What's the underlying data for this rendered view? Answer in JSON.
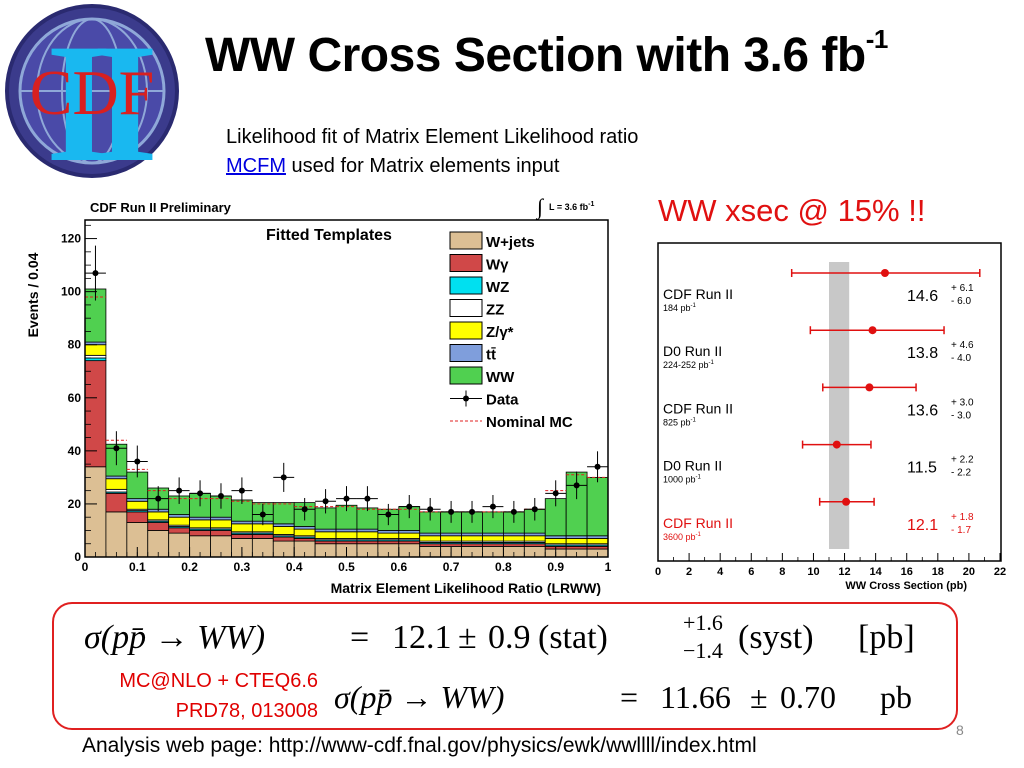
{
  "slide": {
    "title": "WW Cross Section with 3.6 fb",
    "title_sup": "-1",
    "subtitle_line1": "Likelihood fit of Matrix Element Likelihood ratio",
    "subtitle_link": "MCFM",
    "subtitle_line2_rest": " used for Matrix elements input",
    "highlight": "WW xsec @ 15% !!",
    "logo_text": "CDF",
    "logo_numeral": "II",
    "page_number": "8",
    "footer": "Analysis web page: http://www-cdf.fnal.gov/physics/ewk/wwllll/index.html",
    "theory_line1": "MC@NLO + CTEQ6.6",
    "theory_line2": "PRD78, 013008",
    "measurement": {
      "lhs": "σ(pp̄ → WW)",
      "eq": "=",
      "value": "12.1",
      "pm": "±",
      "stat": "0.9",
      "stat_label": "(stat)",
      "syst_up": "+1.6",
      "syst_down": "−1.4",
      "syst_label": "(syst)",
      "unit": "[pb]"
    },
    "theory_prediction": {
      "lhs": "σ(pp̄  →  WW)",
      "eq": "=",
      "value": "11.66",
      "pm": "±",
      "err": "0.70",
      "unit": "pb"
    }
  },
  "colors": {
    "w_jets": "#dcbf94",
    "w_gamma": "#d04848",
    "wz": "#00e0f0",
    "zz": "#ffffff",
    "z_gamma": "#ffff00",
    "ttbar": "#7f9edc",
    "ww": "#50d050",
    "highlight_red": "#e01010",
    "band_grey": "#c8c8c8"
  },
  "chart_data": [
    {
      "type": "bar",
      "stacked": true,
      "title": "CDF Run II Preliminary",
      "lumi_label": "L = 3.6 fb",
      "lumi_sup": "-1",
      "legend_title": "Fitted Templates",
      "legend_position": "top-right",
      "xlabel": "Matrix Element Likelihood Ratio (LRWW)",
      "ylabel": "Events / 0.04",
      "xlim": [
        0,
        1
      ],
      "ylim": [
        0,
        127
      ],
      "xticks": [
        "0",
        "0.1",
        "0.2",
        "0.3",
        "0.4",
        "0.5",
        "0.6",
        "0.7",
        "0.8",
        "0.9",
        "1"
      ],
      "yticks": [
        "0",
        "20",
        "40",
        "60",
        "80",
        "100",
        "120"
      ],
      "bin_edges": [
        0,
        0.04,
        0.08,
        0.12,
        0.16,
        0.2,
        0.24,
        0.28,
        0.32,
        0.36,
        0.4,
        0.44,
        0.48,
        0.52,
        0.56,
        0.6,
        0.64,
        0.68,
        0.72,
        0.76,
        0.8,
        0.84,
        0.88,
        0.92,
        0.96,
        1.0
      ],
      "series": [
        {
          "name": "W+jets",
          "color_key": "w_jets",
          "values": [
            34,
            17,
            13,
            10,
            9,
            8,
            8,
            7,
            7,
            6,
            6,
            5,
            5,
            5,
            5,
            5,
            4,
            4,
            4,
            4,
            4,
            4,
            3,
            3,
            3
          ]
        },
        {
          "name": "Wγ",
          "color_key": "w_gamma",
          "values": [
            40,
            7,
            4,
            3,
            2,
            2,
            2,
            1.5,
            1.5,
            1.5,
            1,
            1,
            1,
            1,
            1,
            1,
            1,
            1,
            1,
            1,
            1,
            1,
            1,
            1,
            1
          ]
        },
        {
          "name": "WZ",
          "color_key": "wz",
          "values": [
            1,
            0.5,
            0.5,
            0.5,
            0.5,
            0.5,
            0.5,
            0.5,
            0.5,
            0.5,
            0.5,
            0.5,
            0.5,
            0.5,
            0.5,
            0.5,
            0.5,
            0.5,
            0.5,
            0.5,
            0.5,
            0.5,
            0.5,
            0.5,
            0.5
          ]
        },
        {
          "name": "ZZ",
          "color_key": "zz",
          "values": [
            1,
            1,
            0.5,
            0.5,
            0.5,
            0.5,
            0.5,
            0.5,
            0.5,
            0.5,
            0.5,
            0.5,
            0.5,
            0.5,
            0.5,
            0.5,
            0.5,
            0.5,
            0.5,
            0.5,
            0.5,
            0.5,
            0.5,
            0.5,
            0.5
          ]
        },
        {
          "name": "Z/γ*",
          "color_key": "z_gamma",
          "values": [
            4,
            4,
            3,
            3,
            3,
            3,
            3,
            3,
            3,
            3,
            2.5,
            2.5,
            2.5,
            2.5,
            2,
            2,
            2,
            2,
            2,
            2,
            2,
            2,
            2,
            2,
            2
          ]
        },
        {
          "name": "tt̄",
          "color_key": "ttbar",
          "values": [
            1,
            1,
            1,
            1,
            1,
            1,
            1,
            1,
            1,
            1,
            1,
            1,
            1,
            1,
            1,
            1,
            1,
            1,
            1,
            1,
            1,
            1,
            1,
            1,
            1
          ]
        },
        {
          "name": "WW",
          "color_key": "ww",
          "values": [
            20,
            12,
            10,
            8,
            7,
            9,
            8,
            8,
            7,
            8,
            9,
            8,
            9,
            8,
            8,
            9,
            8,
            8,
            8,
            8,
            8,
            9,
            14,
            24,
            22
          ]
        }
      ],
      "data_points": {
        "name": "Data",
        "values": [
          107,
          41,
          36,
          22,
          25,
          24,
          23,
          25,
          16,
          30,
          18,
          21,
          22,
          22,
          16,
          19,
          18,
          17,
          17,
          19,
          17,
          18,
          24,
          27,
          34
        ]
      },
      "nominal_mc": {
        "name": "Nominal MC",
        "values": [
          98,
          44,
          33,
          25,
          22,
          22,
          22,
          21,
          20,
          20,
          19,
          19,
          19,
          18,
          18,
          18,
          17,
          17,
          17,
          17,
          17,
          18,
          25,
          31,
          30
        ]
      }
    },
    {
      "type": "scatter",
      "title": "",
      "xlabel": "WW Cross Section (pb)",
      "ylabel": "",
      "xlim": [
        0,
        22
      ],
      "xticks": [
        "0",
        "2",
        "4",
        "6",
        "8",
        "10",
        "12",
        "14",
        "16",
        "18",
        "20",
        "22"
      ],
      "band": {
        "from": 11.0,
        "to": 12.3
      },
      "measurements": [
        {
          "label": "CDF Run II",
          "lumi": "184 pb",
          "value": 14.6,
          "value_text": "14.6",
          "err_up": 6.1,
          "err_down": 6.0,
          "err_up_text": "+ 6.1",
          "err_down_text": "- 6.0",
          "highlight": false
        },
        {
          "label": "D0 Run II",
          "lumi": "224-252 pb",
          "value": 13.8,
          "value_text": "13.8",
          "err_up": 4.6,
          "err_down": 4.0,
          "err_up_text": "+ 4.6",
          "err_down_text": "- 4.0",
          "highlight": false
        },
        {
          "label": "CDF Run II",
          "lumi": "825 pb",
          "value": 13.6,
          "value_text": "13.6",
          "err_up": 3.0,
          "err_down": 3.0,
          "err_up_text": "+ 3.0",
          "err_down_text": "- 3.0",
          "highlight": false
        },
        {
          "label": "D0 Run II",
          "lumi": "1000 pb",
          "value": 11.5,
          "value_text": "11.5",
          "err_up": 2.2,
          "err_down": 2.2,
          "err_up_text": "+ 2.2",
          "err_down_text": "- 2.2",
          "highlight": false
        },
        {
          "label": "CDF Run II",
          "lumi": "3600 pb",
          "value": 12.1,
          "value_text": "12.1",
          "err_up": 1.8,
          "err_down": 1.7,
          "err_up_text": "+ 1.8",
          "err_down_text": "- 1.7",
          "highlight": true
        }
      ],
      "lumi_sup": "-1"
    }
  ]
}
